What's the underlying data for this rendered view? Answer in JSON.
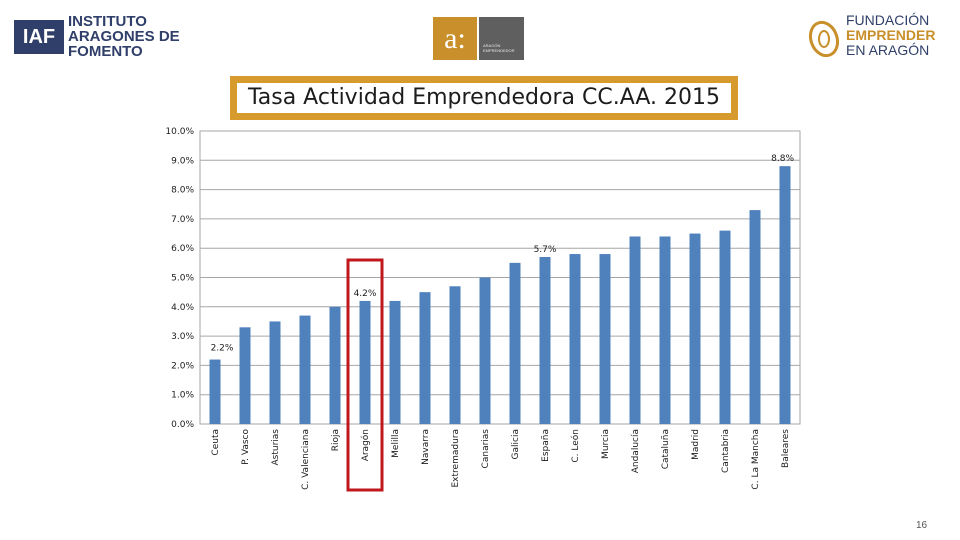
{
  "logos": {
    "iaf": {
      "abbr": "IAF",
      "lines": [
        "INSTITUTO",
        "ARAGONES DE",
        "FOMENTO"
      ]
    },
    "aragon": {
      "mark": "a:",
      "caption": "ARAGÓN EMPRENDEDOR"
    },
    "fundacion": {
      "lines": [
        "FUNDACIÓN",
        "EMPRENDER",
        "EN ARAGÓN"
      ]
    }
  },
  "colors": {
    "bar": "#4f81bd",
    "title_frame": "#d69a2d",
    "highlight": "#c0171d",
    "grid": "#a6a6a6"
  },
  "page_number": "16",
  "chart_data": {
    "type": "bar",
    "title": "Tasa Actividad Emprendedora CC.AA. 2015",
    "xlabel": "",
    "ylabel": "",
    "ylim": [
      0,
      10
    ],
    "yticks": [
      "0.0%",
      "1.0%",
      "2.0%",
      "3.0%",
      "4.0%",
      "5.0%",
      "6.0%",
      "7.0%",
      "8.0%",
      "9.0%",
      "10.0%"
    ],
    "grid": true,
    "categories": [
      "Ceuta",
      "P. Vasco",
      "Asturias",
      "C. Valenciana",
      "Rioja",
      "Aragón",
      "Melilla",
      "Navarra",
      "Extremadura",
      "Canarias",
      "Galicia",
      "España",
      "C. León",
      "Murcia",
      "Andalucía",
      "Cataluña",
      "Madrid",
      "Cantabria",
      "C. La Mancha",
      "Baleares"
    ],
    "values": [
      2.2,
      3.3,
      3.5,
      3.7,
      4.0,
      4.2,
      4.2,
      4.5,
      4.7,
      5.0,
      5.5,
      5.7,
      5.8,
      5.8,
      6.4,
      6.4,
      6.5,
      6.6,
      7.3,
      8.8
    ],
    "data_labels": [
      {
        "index": 0,
        "text": "2.2%"
      },
      {
        "index": 5,
        "text": "4.2%"
      },
      {
        "index": 11,
        "text": "5.7%"
      },
      {
        "index": 19,
        "text": "8.8%"
      }
    ],
    "highlighted_category": "Aragón"
  }
}
